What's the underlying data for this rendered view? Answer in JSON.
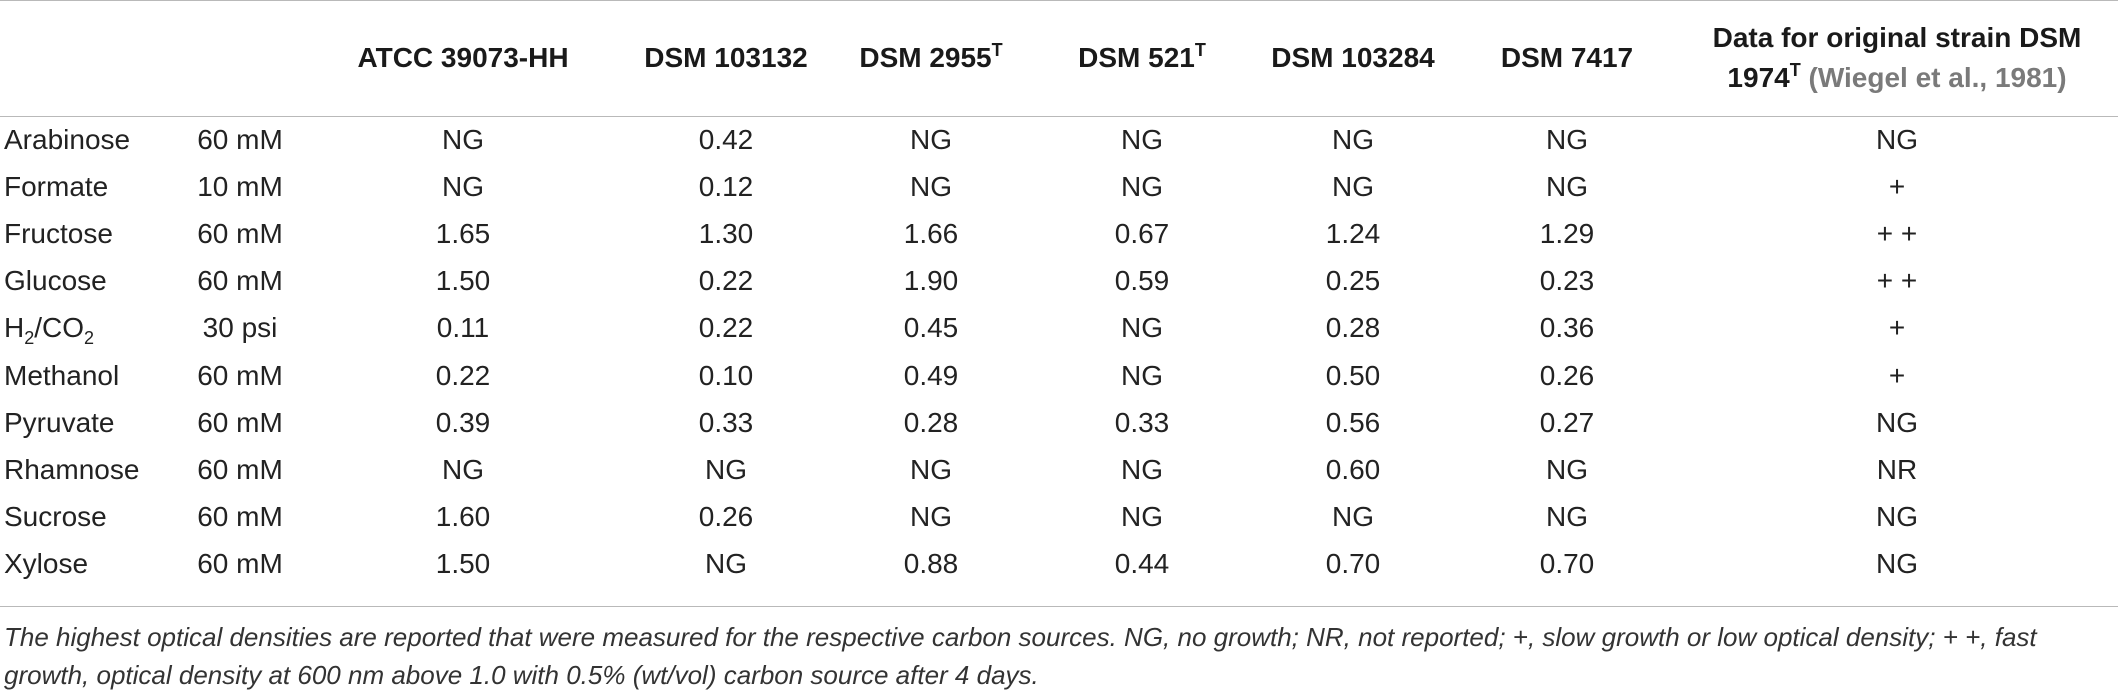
{
  "headers": {
    "strain1": "ATCC 39073-HH",
    "strain2": "DSM 103132",
    "strain3": "DSM 2955",
    "strain3_sup": "T",
    "strain4": "DSM 521",
    "strain4_sup": "T",
    "strain5": "DSM 103284",
    "strain6": "DSM 7417",
    "original_line1": "Data for original strain DSM",
    "original_line2": "1974",
    "original_sup": "T",
    "original_cite": "(Wiegel et al., 1981)"
  },
  "rows": [
    {
      "name": "Arabinose",
      "conc": "60 mM",
      "v": [
        "NG",
        "0.42",
        "NG",
        "NG",
        "NG",
        "NG",
        "NG"
      ]
    },
    {
      "name": "Formate",
      "conc": "10 mM",
      "v": [
        "NG",
        "0.12",
        "NG",
        "NG",
        "NG",
        "NG",
        "+"
      ]
    },
    {
      "name": "Fructose",
      "conc": "60 mM",
      "v": [
        "1.65",
        "1.30",
        "1.66",
        "0.67",
        "1.24",
        "1.29",
        "+ +"
      ]
    },
    {
      "name": "Glucose",
      "conc": "60 mM",
      "v": [
        "1.50",
        "0.22",
        "1.90",
        "0.59",
        "0.25",
        "0.23",
        "+ +"
      ]
    },
    {
      "name_parts": [
        "H",
        "2",
        "/CO",
        "2"
      ],
      "conc": "30 psi",
      "v": [
        "0.11",
        "0.22",
        "0.45",
        "NG",
        "0.28",
        "0.36",
        "+"
      ]
    },
    {
      "name": "Methanol",
      "conc": "60 mM",
      "v": [
        "0.22",
        "0.10",
        "0.49",
        "NG",
        "0.50",
        "0.26",
        "+"
      ]
    },
    {
      "name": "Pyruvate",
      "conc": "60 mM",
      "v": [
        "0.39",
        "0.33",
        "0.28",
        "0.33",
        "0.56",
        "0.27",
        "NG"
      ]
    },
    {
      "name": "Rhamnose",
      "conc": "60 mM",
      "v": [
        "NG",
        "NG",
        "NG",
        "NG",
        "0.60",
        "NG",
        "NR"
      ]
    },
    {
      "name": "Sucrose",
      "conc": "60 mM",
      "v": [
        "1.60",
        "0.26",
        "NG",
        "NG",
        "NG",
        "NG",
        "NG"
      ]
    },
    {
      "name": "Xylose",
      "conc": "60 mM",
      "v": [
        "1.50",
        "NG",
        "0.88",
        "0.44",
        "0.70",
        "0.70",
        "NG"
      ]
    }
  ],
  "footnote": "The highest optical densities are reported that were measured for the respective carbon sources. NG, no growth; NR, not reported; +, slow growth or low optical density; + +, fast growth, optical density at 600 nm above 1.0 with 0.5% (wt/vol) carbon source after 4 days."
}
